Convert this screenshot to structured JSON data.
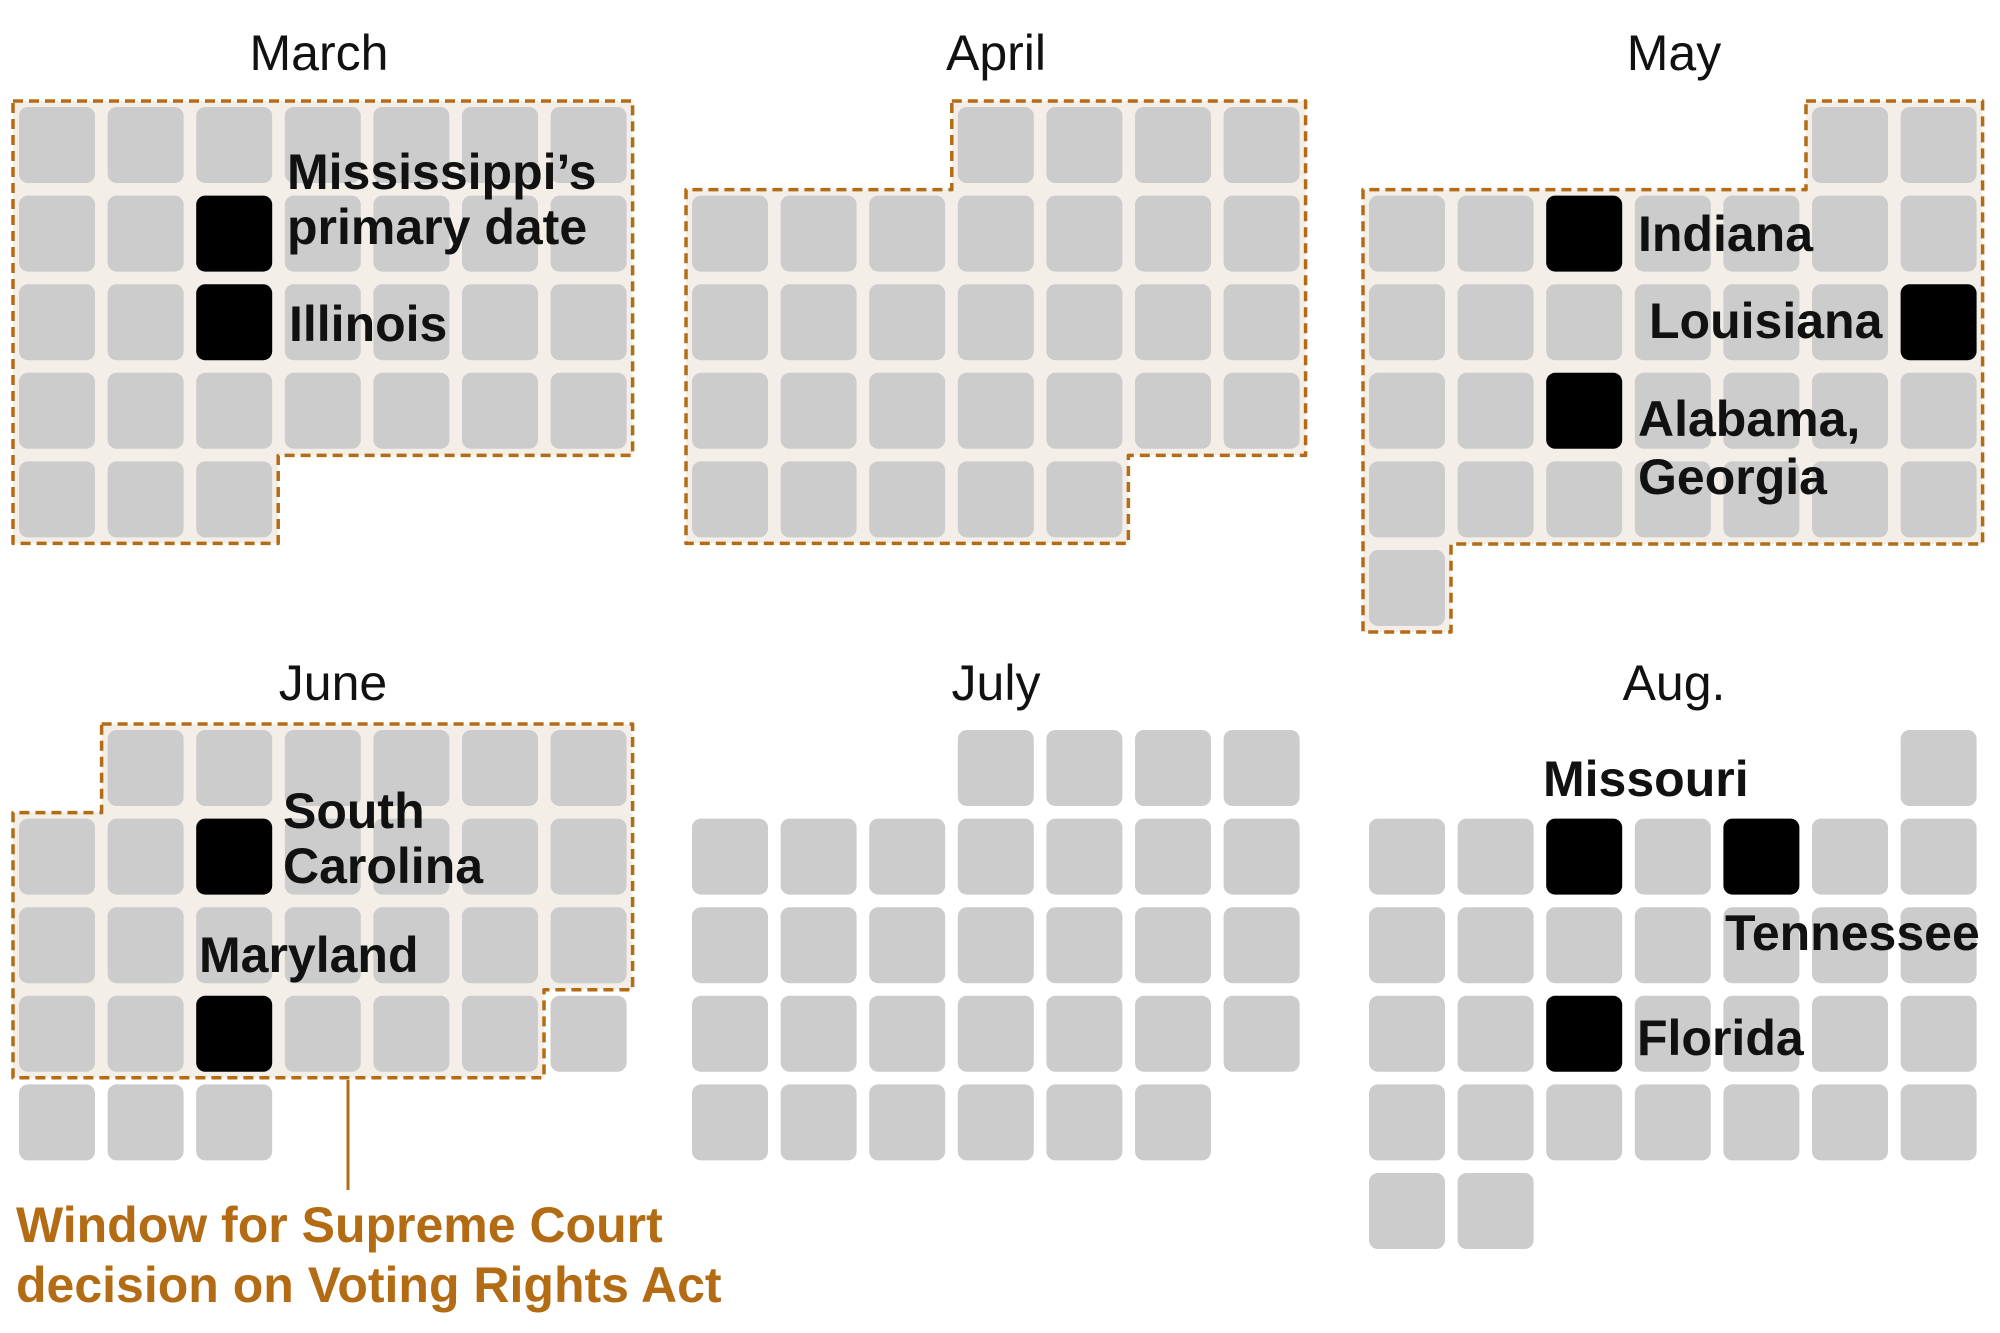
{
  "colors": {
    "day_cell": "#cccccc",
    "primary_cell": "#000000",
    "window_fill": "#f3eee8",
    "window_outline": "#b36b14",
    "annotation_text": "#b36b14",
    "text": "#111111"
  },
  "annotation": {
    "line1": "Window for Supreme Court",
    "line2": "decision on Voting Rights Act"
  },
  "months": [
    {
      "title": "March",
      "start_weekday": 0,
      "days": 31,
      "window": {
        "from_day": 1,
        "to_day": 31
      },
      "primaries": [
        {
          "day": 10,
          "label_lines": [
            "Mississippi’s",
            "primary date"
          ]
        },
        {
          "day": 17,
          "label_lines": [
            "Illinois"
          ]
        }
      ]
    },
    {
      "title": "April",
      "start_weekday": 3,
      "days": 30,
      "window": {
        "from_day": 1,
        "to_day": 30
      },
      "primaries": []
    },
    {
      "title": "May",
      "start_weekday": 5,
      "days": 31,
      "window": {
        "from_day": 1,
        "to_day": 31
      },
      "primaries": [
        {
          "day": 5,
          "label_lines": [
            "Indiana"
          ]
        },
        {
          "day": 16,
          "label_lines": [
            "Louisiana"
          ]
        },
        {
          "day": 19,
          "label_lines": [
            "Alabama,",
            "Georgia"
          ]
        }
      ]
    },
    {
      "title": "June",
      "start_weekday": 1,
      "days": 30,
      "window": {
        "from_day": 1,
        "to_day": 26
      },
      "primaries": [
        {
          "day": 9,
          "label_lines": [
            "South",
            "Carolina"
          ]
        },
        {
          "day": 23,
          "label_lines": [
            "Maryland"
          ]
        }
      ]
    },
    {
      "title": "July",
      "start_weekday": 3,
      "days": 31,
      "window": null,
      "primaries": []
    },
    {
      "title": "Aug.",
      "start_weekday": 6,
      "days": 31,
      "window": null,
      "primaries": [
        {
          "day": 4,
          "label_lines": [
            "Missouri"
          ]
        },
        {
          "day": 6,
          "label_lines": [
            "Tennessee"
          ]
        },
        {
          "day": 18,
          "label_lines": [
            "Florida"
          ]
        }
      ]
    }
  ]
}
